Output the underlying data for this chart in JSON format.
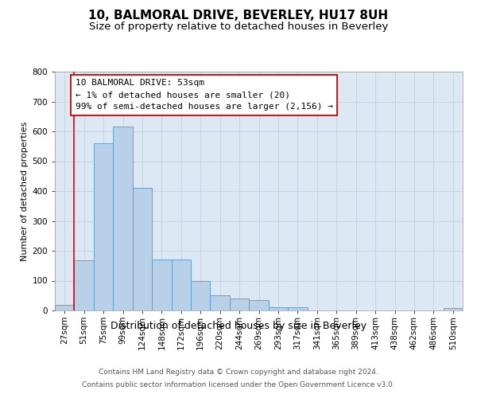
{
  "title": "10, BALMORAL DRIVE, BEVERLEY, HU17 8UH",
  "subtitle": "Size of property relative to detached houses in Beverley",
  "xlabel": "Distribution of detached houses by size in Beverley",
  "ylabel": "Number of detached properties",
  "categories": [
    "27sqm",
    "51sqm",
    "75sqm",
    "99sqm",
    "124sqm",
    "148sqm",
    "172sqm",
    "196sqm",
    "220sqm",
    "244sqm",
    "269sqm",
    "293sqm",
    "317sqm",
    "341sqm",
    "365sqm",
    "389sqm",
    "413sqm",
    "438sqm",
    "462sqm",
    "486sqm",
    "510sqm"
  ],
  "values": [
    20,
    167,
    560,
    615,
    410,
    170,
    170,
    100,
    50,
    40,
    35,
    10,
    10,
    0,
    0,
    0,
    0,
    0,
    0,
    0,
    8
  ],
  "bar_color": "#b8d0e8",
  "bar_edgecolor": "#5599cc",
  "vline_color": "#dd0000",
  "annotation_line1": "10 BALMORAL DRIVE: 53sqm",
  "annotation_line2": "← 1% of detached houses are smaller (20)",
  "annotation_line3": "99% of semi-detached houses are larger (2,156) →",
  "annotation_box_edgecolor": "#cc0000",
  "ylim": [
    0,
    800
  ],
  "yticks": [
    0,
    100,
    200,
    300,
    400,
    500,
    600,
    700,
    800
  ],
  "grid_color": "#c8d4e4",
  "background_color": "#dce8f4",
  "footer_line1": "Contains HM Land Registry data © Crown copyright and database right 2024.",
  "footer_line2": "Contains public sector information licensed under the Open Government Licence v3.0.",
  "title_fontsize": 11,
  "subtitle_fontsize": 9.5,
  "xlabel_fontsize": 9,
  "ylabel_fontsize": 8,
  "tick_fontsize": 7.5,
  "annotation_fontsize": 8,
  "footer_fontsize": 6.5
}
